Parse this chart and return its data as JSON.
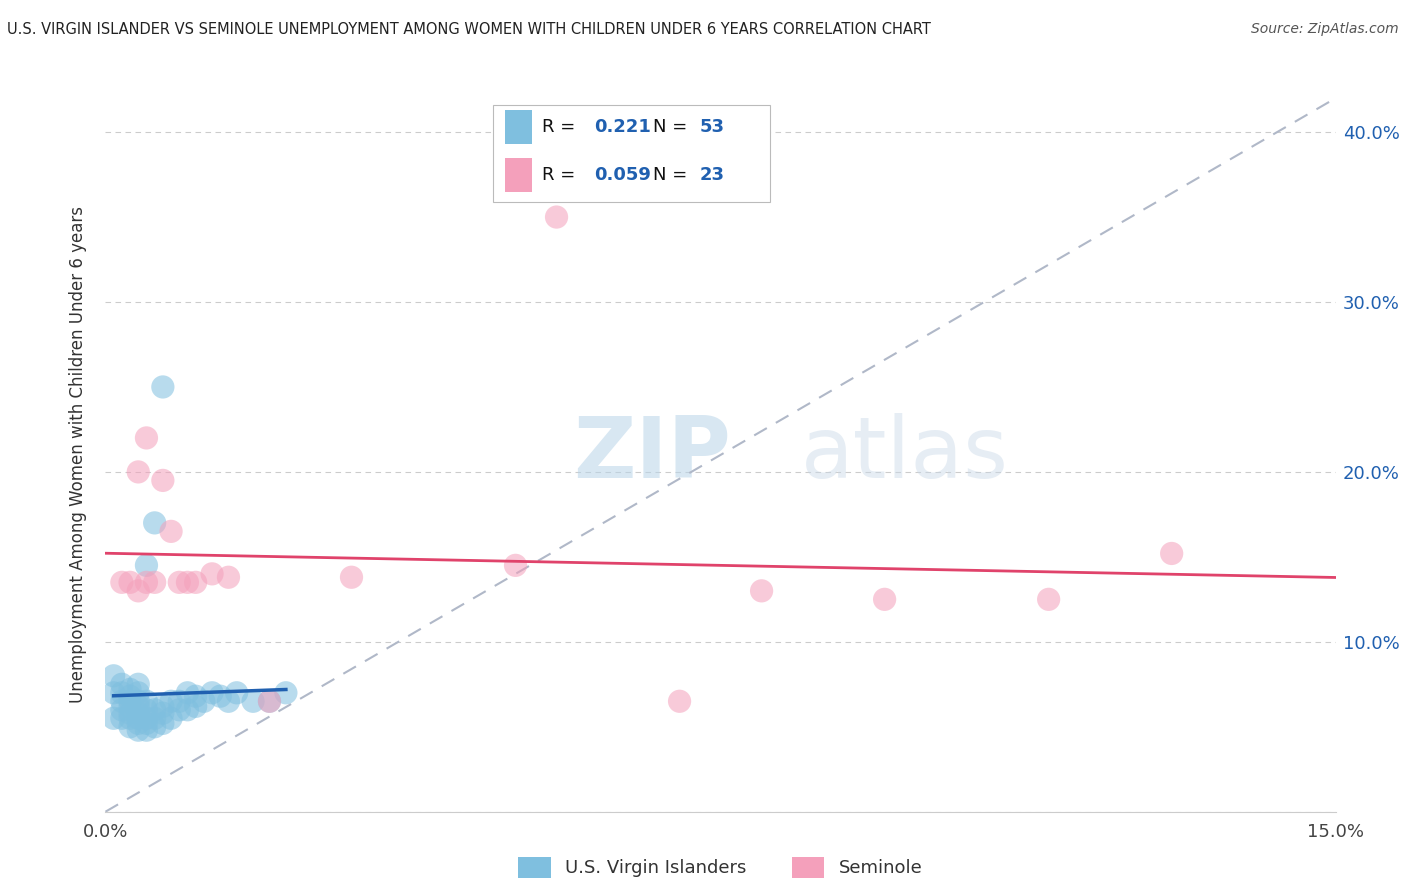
{
  "title": "U.S. VIRGIN ISLANDER VS SEMINOLE UNEMPLOYMENT AMONG WOMEN WITH CHILDREN UNDER 6 YEARS CORRELATION CHART",
  "source": "Source: ZipAtlas.com",
  "ylabel": "Unemployment Among Women with Children Under 6 years",
  "xlim": [
    0.0,
    0.15
  ],
  "ylim": [
    0.0,
    0.42
  ],
  "xticks": [
    0.0,
    0.15
  ],
  "xticklabels": [
    "0.0%",
    "15.0%"
  ],
  "ytick_vals": [
    0.0,
    0.1,
    0.2,
    0.3,
    0.4
  ],
  "yticklabels_right": [
    "",
    "10.0%",
    "20.0%",
    "30.0%",
    "40.0%"
  ],
  "blue_R": "0.221",
  "blue_N": "53",
  "pink_R": "0.059",
  "pink_N": "23",
  "blue_scatter_color": "#7fbfdf",
  "pink_scatter_color": "#f4a0bb",
  "blue_line_color": "#2060b0",
  "pink_line_color": "#e0436b",
  "diagonal_color": "#b0b8c8",
  "watermark_zip": "ZIP",
  "watermark_atlas": "atlas",
  "legend_label_blue": "U.S. Virgin Islanders",
  "legend_label_pink": "Seminole",
  "blue_x": [
    0.001,
    0.001,
    0.001,
    0.002,
    0.002,
    0.002,
    0.002,
    0.002,
    0.003,
    0.003,
    0.003,
    0.003,
    0.003,
    0.003,
    0.003,
    0.004,
    0.004,
    0.004,
    0.004,
    0.004,
    0.004,
    0.004,
    0.004,
    0.005,
    0.005,
    0.005,
    0.005,
    0.005,
    0.005,
    0.006,
    0.006,
    0.006,
    0.006,
    0.007,
    0.007,
    0.007,
    0.007,
    0.008,
    0.008,
    0.009,
    0.009,
    0.01,
    0.01,
    0.011,
    0.011,
    0.012,
    0.013,
    0.014,
    0.015,
    0.016,
    0.018,
    0.02,
    0.022
  ],
  "blue_y": [
    0.055,
    0.07,
    0.08,
    0.055,
    0.06,
    0.065,
    0.07,
    0.075,
    0.05,
    0.055,
    0.058,
    0.062,
    0.065,
    0.068,
    0.072,
    0.048,
    0.052,
    0.055,
    0.058,
    0.062,
    0.065,
    0.07,
    0.075,
    0.048,
    0.052,
    0.055,
    0.06,
    0.065,
    0.145,
    0.05,
    0.055,
    0.06,
    0.17,
    0.052,
    0.058,
    0.062,
    0.25,
    0.055,
    0.065,
    0.06,
    0.065,
    0.06,
    0.07,
    0.062,
    0.068,
    0.065,
    0.07,
    0.068,
    0.065,
    0.07,
    0.065,
    0.065,
    0.07
  ],
  "pink_x": [
    0.002,
    0.003,
    0.004,
    0.004,
    0.005,
    0.005,
    0.006,
    0.007,
    0.008,
    0.009,
    0.01,
    0.011,
    0.013,
    0.015,
    0.02,
    0.03,
    0.05,
    0.055,
    0.07,
    0.08,
    0.095,
    0.115,
    0.13
  ],
  "pink_y": [
    0.135,
    0.135,
    0.13,
    0.2,
    0.135,
    0.22,
    0.135,
    0.195,
    0.165,
    0.135,
    0.135,
    0.135,
    0.14,
    0.138,
    0.065,
    0.138,
    0.145,
    0.35,
    0.065,
    0.13,
    0.125,
    0.125,
    0.152
  ]
}
